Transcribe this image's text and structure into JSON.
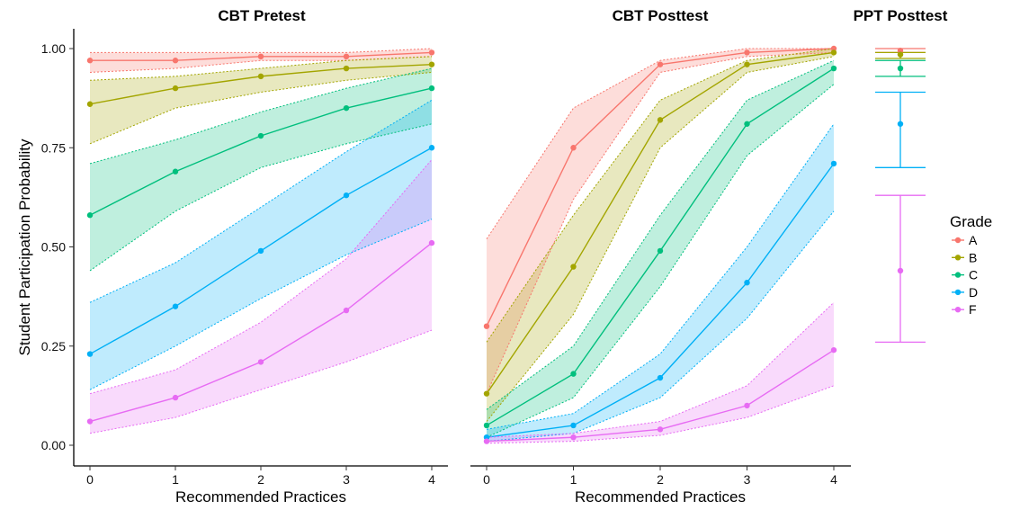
{
  "chart_data": {
    "type": "line",
    "ylabel": "Student Participation Probability",
    "ylim": [
      0,
      1
    ],
    "yticks": [
      "0.00",
      "0.25",
      "0.50",
      "0.75",
      "1.00"
    ],
    "legend": {
      "title": "Grade",
      "position": "right"
    },
    "grades": [
      {
        "name": "A",
        "color": "#F8766D"
      },
      {
        "name": "B",
        "color": "#A3A500"
      },
      {
        "name": "C",
        "color": "#00BF7D"
      },
      {
        "name": "D",
        "color": "#00B0F6"
      },
      {
        "name": "F",
        "color": "#E76BF3"
      }
    ],
    "panels": [
      {
        "title": "CBT Pretest",
        "xlabel": "Recommended Practices",
        "x": [
          0,
          1,
          2,
          3,
          4
        ],
        "xticks": [
          "0",
          "1",
          "2",
          "3",
          "4"
        ],
        "series": [
          {
            "name": "A",
            "values": [
              0.97,
              0.97,
              0.98,
              0.98,
              0.99
            ],
            "lower": [
              0.94,
              0.95,
              0.97,
              0.97,
              0.98
            ],
            "upper": [
              0.99,
              0.99,
              0.99,
              0.99,
              1.0
            ]
          },
          {
            "name": "B",
            "values": [
              0.86,
              0.9,
              0.93,
              0.95,
              0.96
            ],
            "lower": [
              0.76,
              0.85,
              0.89,
              0.92,
              0.94
            ],
            "upper": [
              0.92,
              0.93,
              0.95,
              0.97,
              0.98
            ]
          },
          {
            "name": "C",
            "values": [
              0.58,
              0.69,
              0.78,
              0.85,
              0.9
            ],
            "lower": [
              0.44,
              0.59,
              0.7,
              0.76,
              0.81
            ],
            "upper": [
              0.71,
              0.77,
              0.84,
              0.9,
              0.95
            ]
          },
          {
            "name": "D",
            "values": [
              0.23,
              0.35,
              0.49,
              0.63,
              0.75
            ],
            "lower": [
              0.14,
              0.25,
              0.37,
              0.48,
              0.57
            ],
            "upper": [
              0.36,
              0.46,
              0.6,
              0.74,
              0.87
            ]
          },
          {
            "name": "F",
            "values": [
              0.06,
              0.12,
              0.21,
              0.34,
              0.51
            ],
            "lower": [
              0.03,
              0.07,
              0.14,
              0.21,
              0.29
            ],
            "upper": [
              0.13,
              0.19,
              0.31,
              0.47,
              0.72
            ]
          }
        ]
      },
      {
        "title": "CBT Posttest",
        "xlabel": "Recommended Practices",
        "x": [
          0,
          1,
          2,
          3,
          4
        ],
        "xticks": [
          "0",
          "1",
          "2",
          "3",
          "4"
        ],
        "series": [
          {
            "name": "A",
            "values": [
              0.3,
              0.75,
              0.96,
              0.99,
              1.0
            ],
            "lower": [
              0.13,
              0.62,
              0.94,
              0.98,
              0.99
            ],
            "upper": [
              0.52,
              0.85,
              0.97,
              1.0,
              1.0
            ]
          },
          {
            "name": "B",
            "values": [
              0.13,
              0.45,
              0.82,
              0.96,
              0.99
            ],
            "lower": [
              0.06,
              0.33,
              0.75,
              0.94,
              0.98
            ],
            "upper": [
              0.26,
              0.58,
              0.87,
              0.97,
              1.0
            ]
          },
          {
            "name": "C",
            "values": [
              0.05,
              0.18,
              0.49,
              0.81,
              0.95
            ],
            "lower": [
              0.02,
              0.12,
              0.4,
              0.73,
              0.91
            ],
            "upper": [
              0.09,
              0.25,
              0.58,
              0.87,
              0.97
            ]
          },
          {
            "name": "D",
            "values": [
              0.02,
              0.05,
              0.17,
              0.41,
              0.71
            ],
            "lower": [
              0.01,
              0.03,
              0.12,
              0.32,
              0.59
            ],
            "upper": [
              0.04,
              0.08,
              0.23,
              0.5,
              0.81
            ]
          },
          {
            "name": "F",
            "values": [
              0.01,
              0.02,
              0.04,
              0.1,
              0.24
            ],
            "lower": [
              0.005,
              0.01,
              0.025,
              0.07,
              0.15
            ],
            "upper": [
              0.02,
              0.03,
              0.06,
              0.15,
              0.36
            ]
          }
        ]
      },
      {
        "title": "PPT Posttest",
        "type": "errorbar",
        "series": [
          {
            "name": "A",
            "value": 0.995,
            "lower": 0.99,
            "upper": 1.0
          },
          {
            "name": "B",
            "value": 0.985,
            "lower": 0.975,
            "upper": 0.99
          },
          {
            "name": "C",
            "value": 0.95,
            "lower": 0.93,
            "upper": 0.97
          },
          {
            "name": "D",
            "value": 0.81,
            "lower": 0.7,
            "upper": 0.89
          },
          {
            "name": "F",
            "value": 0.44,
            "lower": 0.26,
            "upper": 0.63
          }
        ]
      }
    ]
  }
}
